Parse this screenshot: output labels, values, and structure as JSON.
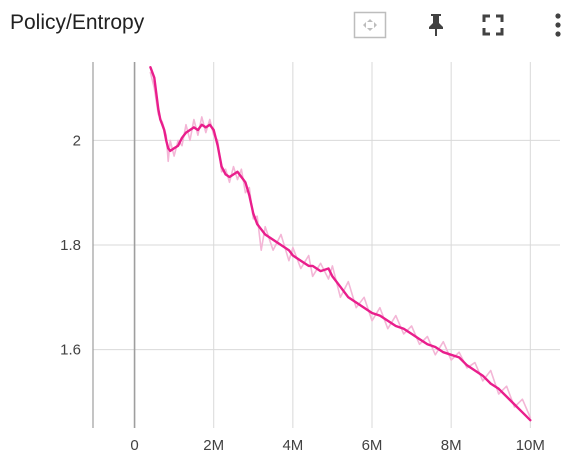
{
  "header": {
    "title": "Policy/Entropy",
    "icons": [
      "fit-domain-icon",
      "pin-icon",
      "fullscreen-icon",
      "more-vert-icon"
    ]
  },
  "colors": {
    "series": "#e91e8c",
    "raw_series": "#f3b6d6",
    "grid": "#d9d9d9",
    "axis": "#9e9e9e",
    "icon": "#424242"
  },
  "chart_data": {
    "type": "line",
    "title": "Policy/Entropy",
    "xlabel": "",
    "ylabel": "",
    "xlim": [
      -1050000,
      10750000
    ],
    "ylim": [
      1.45,
      2.15
    ],
    "grid": true,
    "x_ticks": [
      0,
      2000000,
      4000000,
      6000000,
      8000000,
      10000000
    ],
    "x_tick_labels": [
      "0",
      "2M",
      "4M",
      "6M",
      "8M",
      "10M"
    ],
    "y_ticks": [
      1.6,
      1.8,
      2.0
    ],
    "y_tick_labels": [
      "1.6",
      "1.8",
      "2"
    ],
    "series": [
      {
        "smoothed": true,
        "x": [
          400000,
          500000,
          550000,
          600000,
          650000,
          700000,
          750000,
          800000,
          850000,
          900000,
          1000000,
          1100000,
          1200000,
          1300000,
          1400000,
          1500000,
          1600000,
          1700000,
          1800000,
          1900000,
          2000000,
          2100000,
          2200000,
          2300000,
          2400000,
          2500000,
          2600000,
          2700000,
          2800000,
          2900000,
          3000000,
          3100000,
          3200000,
          3300000,
          3500000,
          3700000,
          3900000,
          4000000,
          4200000,
          4400000,
          4500000,
          4700000,
          4900000,
          5000000,
          5200000,
          5400000,
          5600000,
          5800000,
          6000000,
          6200000,
          6400000,
          6600000,
          6800000,
          7000000,
          7200000,
          7400000,
          7600000,
          7800000,
          8000000,
          8200000,
          8400000,
          8600000,
          8800000,
          9000000,
          9200000,
          9400000,
          9600000,
          9800000,
          10000000
        ],
        "values": [
          2.14,
          2.12,
          2.09,
          2.06,
          2.04,
          2.03,
          2.02,
          2.0,
          1.985,
          1.98,
          1.985,
          1.99,
          2.005,
          2.015,
          2.02,
          2.025,
          2.02,
          2.03,
          2.025,
          2.03,
          2.02,
          1.99,
          1.95,
          1.935,
          1.93,
          1.935,
          1.94,
          1.93,
          1.92,
          1.895,
          1.86,
          1.84,
          1.83,
          1.82,
          1.81,
          1.8,
          1.79,
          1.78,
          1.77,
          1.76,
          1.76,
          1.75,
          1.755,
          1.74,
          1.72,
          1.7,
          1.69,
          1.68,
          1.67,
          1.665,
          1.655,
          1.645,
          1.64,
          1.63,
          1.62,
          1.61,
          1.605,
          1.595,
          1.59,
          1.585,
          1.57,
          1.56,
          1.55,
          1.535,
          1.525,
          1.51,
          1.495,
          1.48,
          1.465
        ]
      },
      {
        "smoothed": false,
        "x": [
          400000,
          500000,
          600000,
          700000,
          800000,
          850000,
          900000,
          1000000,
          1100000,
          1200000,
          1300000,
          1400000,
          1500000,
          1600000,
          1700000,
          1800000,
          1900000,
          2000000,
          2100000,
          2200000,
          2300000,
          2400000,
          2500000,
          2600000,
          2700000,
          2800000,
          2900000,
          3000000,
          3100000,
          3200000,
          3300000,
          3500000,
          3700000,
          3900000,
          4000000,
          4200000,
          4400000,
          4500000,
          4700000,
          4900000,
          5000000,
          5200000,
          5400000,
          5600000,
          5800000,
          6000000,
          6200000,
          6400000,
          6600000,
          6800000,
          7000000,
          7200000,
          7400000,
          7600000,
          7800000,
          8000000,
          8200000,
          8400000,
          8600000,
          8800000,
          9000000,
          9200000,
          9400000,
          9600000,
          9800000,
          10000000
        ],
        "values": [
          2.13,
          2.1,
          2.05,
          2.035,
          2.01,
          1.96,
          2.0,
          1.97,
          2.0,
          1.99,
          2.03,
          2.0,
          2.04,
          2.01,
          2.045,
          2.015,
          2.04,
          2.01,
          2.0,
          1.94,
          1.945,
          1.92,
          1.95,
          1.925,
          1.945,
          1.9,
          1.91,
          1.85,
          1.855,
          1.79,
          1.835,
          1.79,
          1.82,
          1.77,
          1.795,
          1.755,
          1.78,
          1.74,
          1.765,
          1.735,
          1.76,
          1.7,
          1.73,
          1.68,
          1.7,
          1.655,
          1.68,
          1.64,
          1.665,
          1.63,
          1.645,
          1.61,
          1.625,
          1.59,
          1.615,
          1.58,
          1.595,
          1.565,
          1.575,
          1.54,
          1.56,
          1.515,
          1.53,
          1.49,
          1.505,
          1.47
        ]
      }
    ]
  }
}
